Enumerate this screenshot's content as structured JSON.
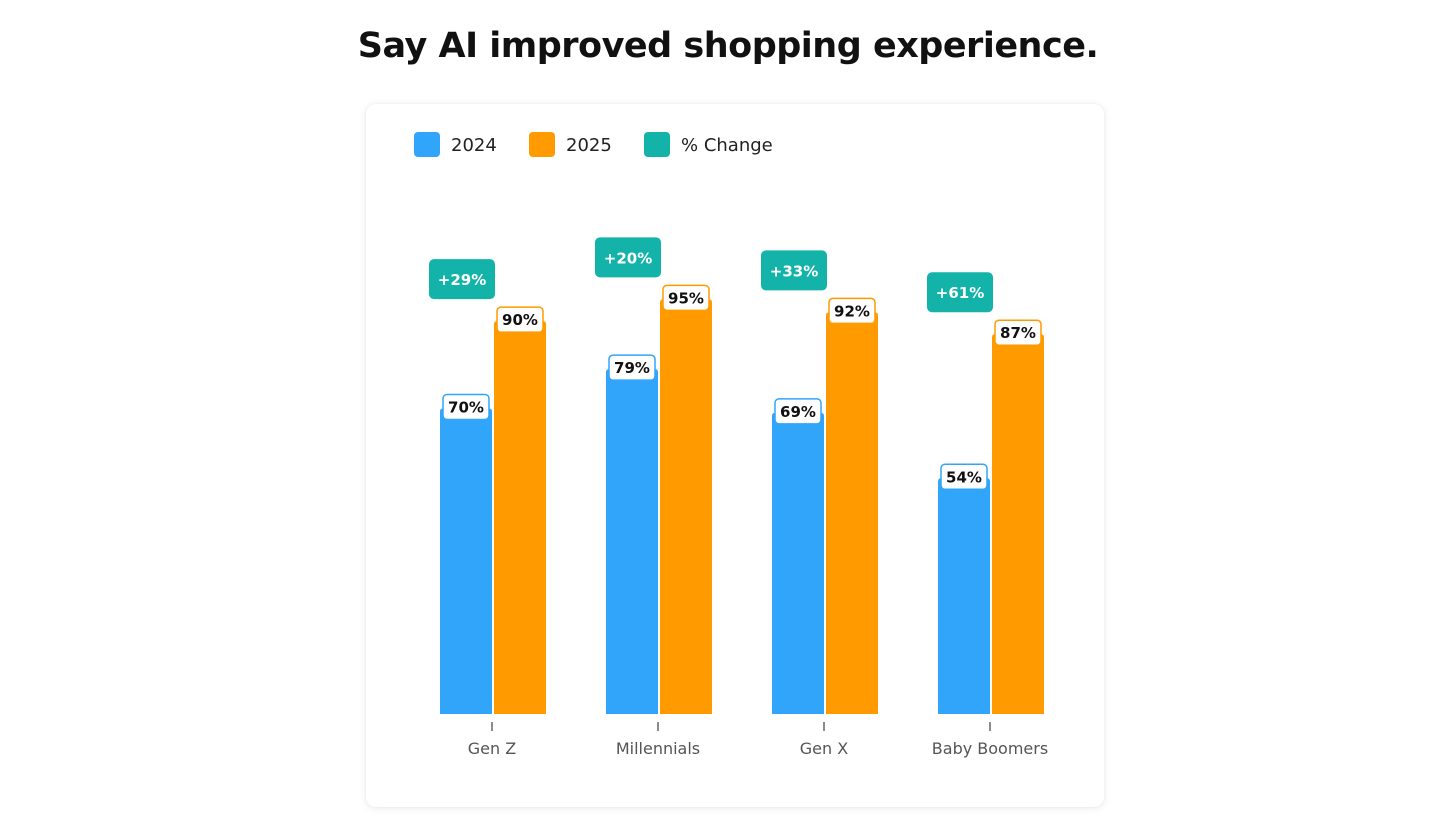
{
  "page": {
    "title": "Say AI improved shopping experience."
  },
  "chart_data": {
    "type": "bar",
    "title": "Say AI improved shopping experience.",
    "categories": [
      "Gen Z",
      "Millennials",
      "Gen X",
      "Baby Boomers"
    ],
    "series": [
      {
        "name": "2024",
        "color": "#31A5F9",
        "values": [
          70,
          79,
          69,
          54
        ],
        "labels": [
          "70%",
          "79%",
          "69%",
          "54%"
        ]
      },
      {
        "name": "2025",
        "color": "#FF9A00",
        "values": [
          90,
          95,
          92,
          87
        ],
        "labels": [
          "90%",
          "95%",
          "92%",
          "87%"
        ]
      }
    ],
    "change": {
      "name": "% Change",
      "color": "#14B3A9",
      "values": [
        29,
        20,
        33,
        61
      ],
      "labels": [
        "+29%",
        "+20%",
        "+33%",
        "+61%"
      ]
    },
    "legend": {
      "position": "top-left",
      "entries": [
        "2024",
        "2025",
        "% Change"
      ]
    },
    "xlabel": "",
    "ylabel": "",
    "ylim": [
      0,
      100
    ],
    "grid": false
  }
}
